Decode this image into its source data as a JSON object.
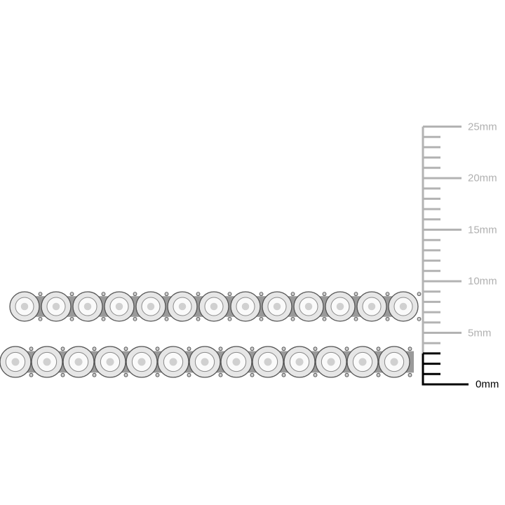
{
  "image": {
    "subject": "tennis-bracelet",
    "strands": 2
  },
  "ruler": {
    "unit": "mm",
    "max_mm": 25,
    "labels": [
      {
        "mm": 25,
        "text": "25mm"
      },
      {
        "mm": 20,
        "text": "20mm"
      },
      {
        "mm": 15,
        "text": "15mm"
      },
      {
        "mm": 10,
        "text": "10mm"
      },
      {
        "mm": 5,
        "text": "5mm"
      },
      {
        "mm": 0,
        "text": "0mm"
      }
    ],
    "highlighted_mm": 3,
    "colors": {
      "scale": "#b3b3b3",
      "highlight": "#000000"
    }
  }
}
